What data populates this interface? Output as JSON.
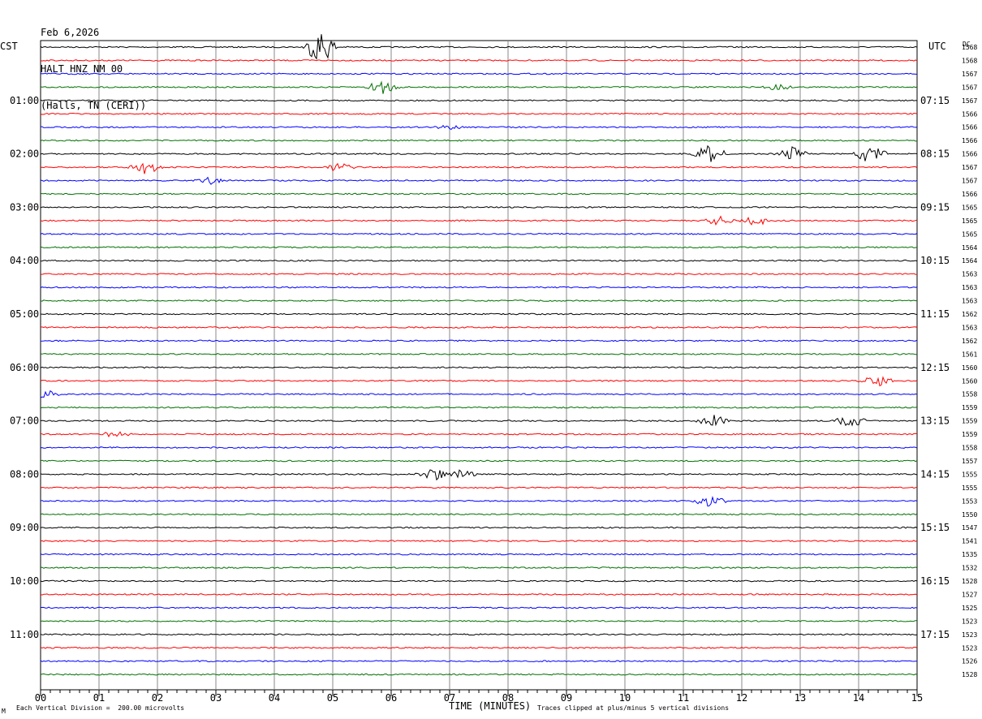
{
  "header": {
    "date": "Feb 6,2026",
    "station": "HALT HNZ NM 00",
    "location": "(Halls, TN (CERI))"
  },
  "left_tz": "CST",
  "right_tz": "UTC",
  "dc_label": "DC",
  "footer": {
    "corner_mark": "M",
    "scale_note": "Each Vertical Division =  200.00 microvolts",
    "clip_note": "Traces clipped at plus/minus 5 vertical divisions"
  },
  "chart_data": {
    "type": "line",
    "xlabel": "TIME (MINUTES)",
    "xlim": [
      0,
      15
    ],
    "x_ticks": [
      "00",
      "01",
      "02",
      "03",
      "04",
      "05",
      "06",
      "07",
      "08",
      "09",
      "10",
      "11",
      "12",
      "13",
      "14",
      "15"
    ],
    "left_time_labels": [
      "01:00",
      "02:00",
      "03:00",
      "04:00",
      "05:00",
      "06:00",
      "07:00",
      "08:00",
      "09:00",
      "10:00",
      "11:00"
    ],
    "right_time_labels": [
      "07:15",
      "08:15",
      "09:15",
      "10:15",
      "11:15",
      "12:15",
      "13:15",
      "14:15",
      "15:15",
      "16:15",
      "17:15"
    ],
    "trace_colors": [
      "#000000",
      "#ff0000",
      "#0000ff",
      "#007000"
    ],
    "dc_values": [
      1568,
      1568,
      1567,
      1567,
      1567,
      1566,
      1566,
      1566,
      1566,
      1567,
      1567,
      1566,
      1565,
      1565,
      1565,
      1564,
      1564,
      1563,
      1563,
      1563,
      1562,
      1563,
      1562,
      1561,
      1560,
      1560,
      1558,
      1559,
      1559,
      1559,
      1558,
      1557,
      1555,
      1555,
      1553,
      1550,
      1547,
      1541,
      1535,
      1532,
      1528,
      1527,
      1525,
      1523,
      1523,
      1523,
      1526,
      1528
    ],
    "events": [
      {
        "trace": 0,
        "minute": 4.8,
        "amp": 22
      },
      {
        "trace": 3,
        "minute": 5.85,
        "amp": 10
      },
      {
        "trace": 3,
        "minute": 12.6,
        "amp": 5
      },
      {
        "trace": 6,
        "minute": 7.0,
        "amp": 4
      },
      {
        "trace": 8,
        "minute": 11.45,
        "amp": 14
      },
      {
        "trace": 8,
        "minute": 12.85,
        "amp": 10
      },
      {
        "trace": 8,
        "minute": 14.2,
        "amp": 12
      },
      {
        "trace": 9,
        "minute": 1.8,
        "amp": 9
      },
      {
        "trace": 9,
        "minute": 5.1,
        "amp": 6
      },
      {
        "trace": 10,
        "minute": 2.9,
        "amp": 5
      },
      {
        "trace": 13,
        "minute": 11.6,
        "amp": 6
      },
      {
        "trace": 13,
        "minute": 12.25,
        "amp": 7
      },
      {
        "trace": 25,
        "minute": 14.3,
        "amp": 9
      },
      {
        "trace": 26,
        "minute": 0.05,
        "amp": 6
      },
      {
        "trace": 28,
        "minute": 11.5,
        "amp": 8
      },
      {
        "trace": 28,
        "minute": 13.85,
        "amp": 9
      },
      {
        "trace": 29,
        "minute": 1.3,
        "amp": 5
      },
      {
        "trace": 32,
        "minute": 6.7,
        "amp": 9
      },
      {
        "trace": 32,
        "minute": 7.2,
        "amp": 6
      },
      {
        "trace": 34,
        "minute": 11.45,
        "amp": 9
      }
    ]
  }
}
